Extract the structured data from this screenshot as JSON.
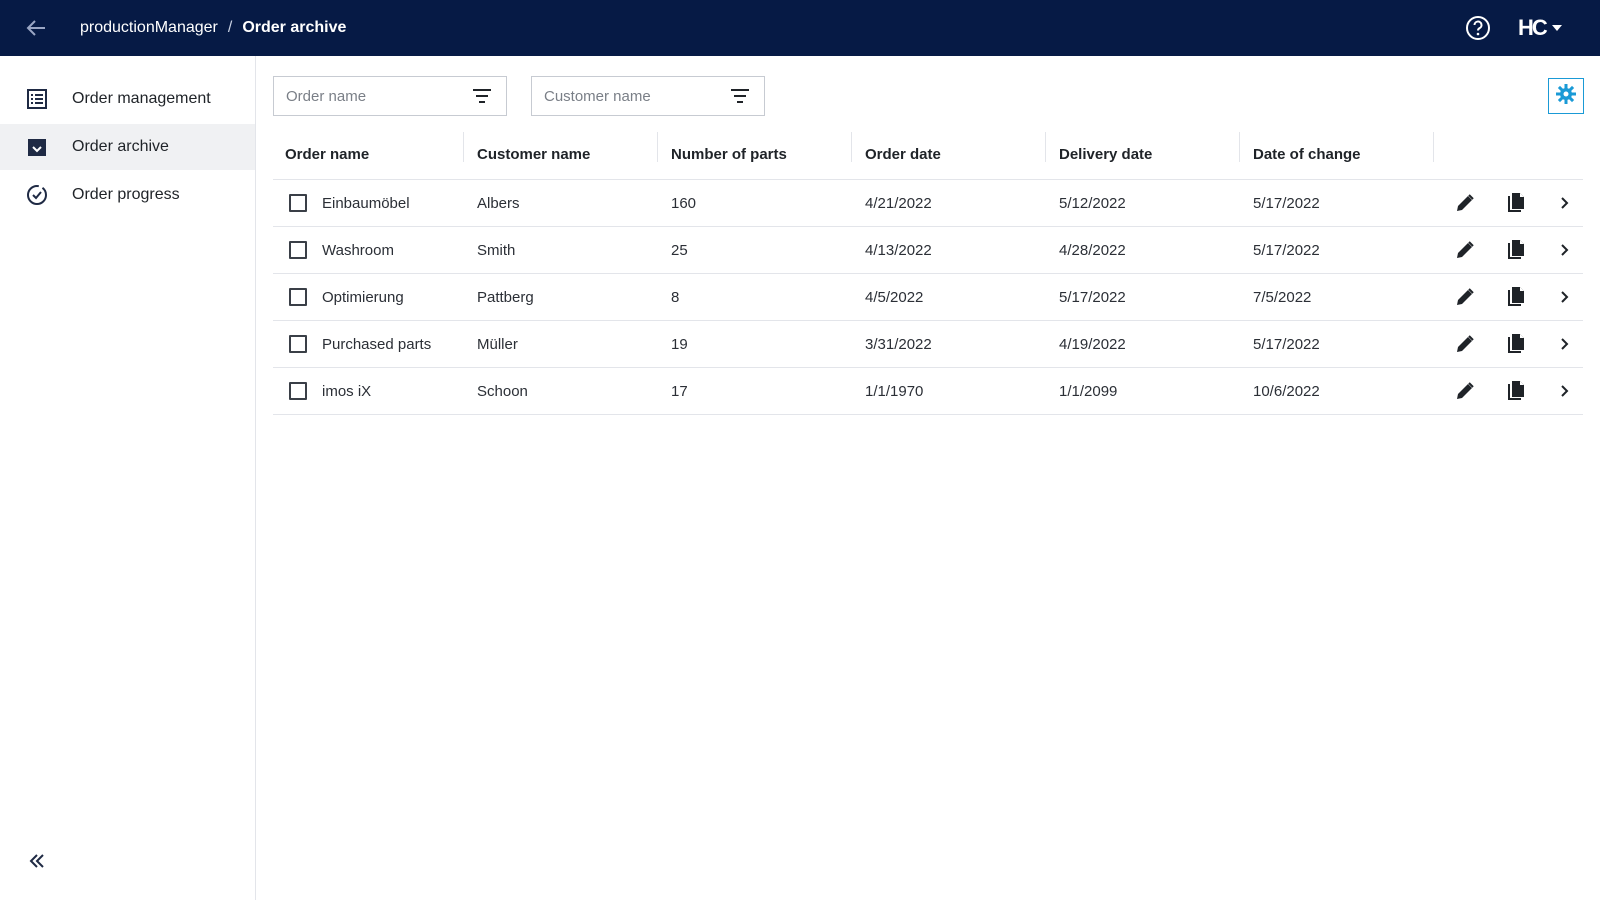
{
  "header": {
    "app_name": "productionManager",
    "separator": "/",
    "current_page": "Order archive",
    "brand_logo_text": "HC"
  },
  "sidebar": {
    "items": [
      {
        "label": "Order management",
        "icon": "list-icon",
        "active": false
      },
      {
        "label": "Order archive",
        "icon": "archive-icon",
        "active": true
      },
      {
        "label": "Order progress",
        "icon": "progress-check-icon",
        "active": false
      }
    ]
  },
  "filters": {
    "order_name_placeholder": "Order name",
    "customer_name_placeholder": "Customer name"
  },
  "table": {
    "columns": [
      "Order name",
      "Customer name",
      "Number of parts",
      "Order date",
      "Delivery date",
      "Date of change"
    ],
    "rows": [
      {
        "order_name": "Einbaumöbel",
        "customer": "Albers",
        "parts": "160",
        "order_date": "4/21/2022",
        "delivery_date": "5/12/2022",
        "changed": "5/17/2022"
      },
      {
        "order_name": "Washroom",
        "customer": "Smith",
        "parts": "25",
        "order_date": "4/13/2022",
        "delivery_date": "4/28/2022",
        "changed": "5/17/2022"
      },
      {
        "order_name": "Optimierung",
        "customer": "Pattberg",
        "parts": "8",
        "order_date": "4/5/2022",
        "delivery_date": "5/17/2022",
        "changed": "7/5/2022"
      },
      {
        "order_name": "Purchased parts",
        "customer": "Müller",
        "parts": "19",
        "order_date": "3/31/2022",
        "delivery_date": "4/19/2022",
        "changed": "5/17/2022"
      },
      {
        "order_name": "imos iX",
        "customer": "Schoon",
        "parts": "17",
        "order_date": "1/1/1970",
        "delivery_date": "1/1/2099",
        "changed": "10/6/2022"
      }
    ]
  },
  "colors": {
    "topbar": "#061a45",
    "accent": "#1a9ad6",
    "active_nav": "#f0f1f3"
  }
}
